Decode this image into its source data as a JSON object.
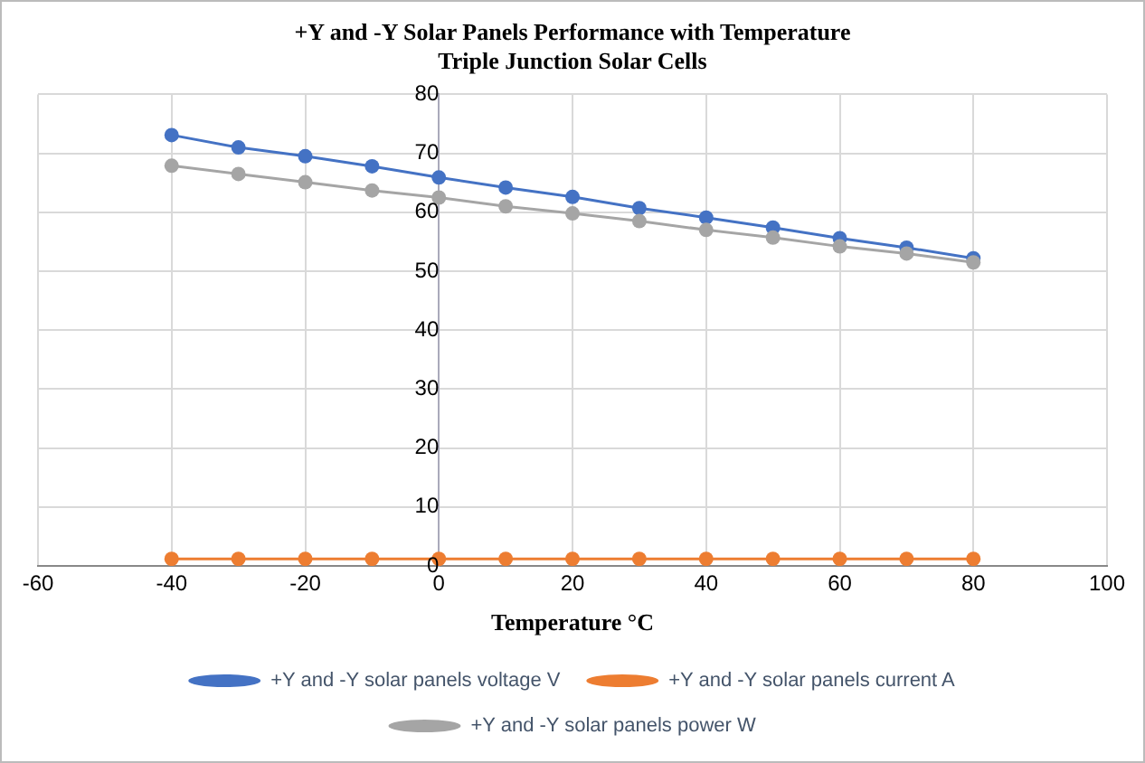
{
  "chart_data": {
    "type": "line",
    "title": "+Y and -Y Solar Panels Performance with Temperature",
    "subtitle": "Triple Junction Solar Cells",
    "xlabel": "Temperature °C",
    "x": [
      -40,
      -30,
      -20,
      -10,
      0,
      10,
      20,
      30,
      40,
      50,
      60,
      70,
      80
    ],
    "xlim": [
      -60,
      100
    ],
    "xticks": [
      -60,
      -40,
      -20,
      0,
      20,
      40,
      60,
      80,
      100
    ],
    "ylim": [
      0,
      80
    ],
    "yticks": [
      0,
      10,
      20,
      30,
      40,
      50,
      60,
      70,
      80
    ],
    "grid": true,
    "legend": "bottom",
    "marker": "circle",
    "line_style": "solid",
    "series": [
      {
        "name": "+Y and -Y solar panels voltage V",
        "color": "#4472c4",
        "values": [
          73.1,
          71.0,
          69.5,
          67.8,
          65.9,
          64.2,
          62.6,
          60.7,
          59.1,
          57.4,
          55.6,
          54.0,
          52.2
        ]
      },
      {
        "name": "+Y and -Y solar panels current A",
        "color": "#ed7d31",
        "values": [
          1.2,
          1.2,
          1.2,
          1.2,
          1.2,
          1.2,
          1.2,
          1.2,
          1.2,
          1.2,
          1.2,
          1.2,
          1.2
        ]
      },
      {
        "name": "+Y and -Y solar panels power W",
        "color": "#a5a5a5",
        "values": [
          67.9,
          66.5,
          65.1,
          63.7,
          62.5,
          61.0,
          59.8,
          58.5,
          57.0,
          55.7,
          54.2,
          53.0,
          51.5
        ]
      }
    ]
  }
}
